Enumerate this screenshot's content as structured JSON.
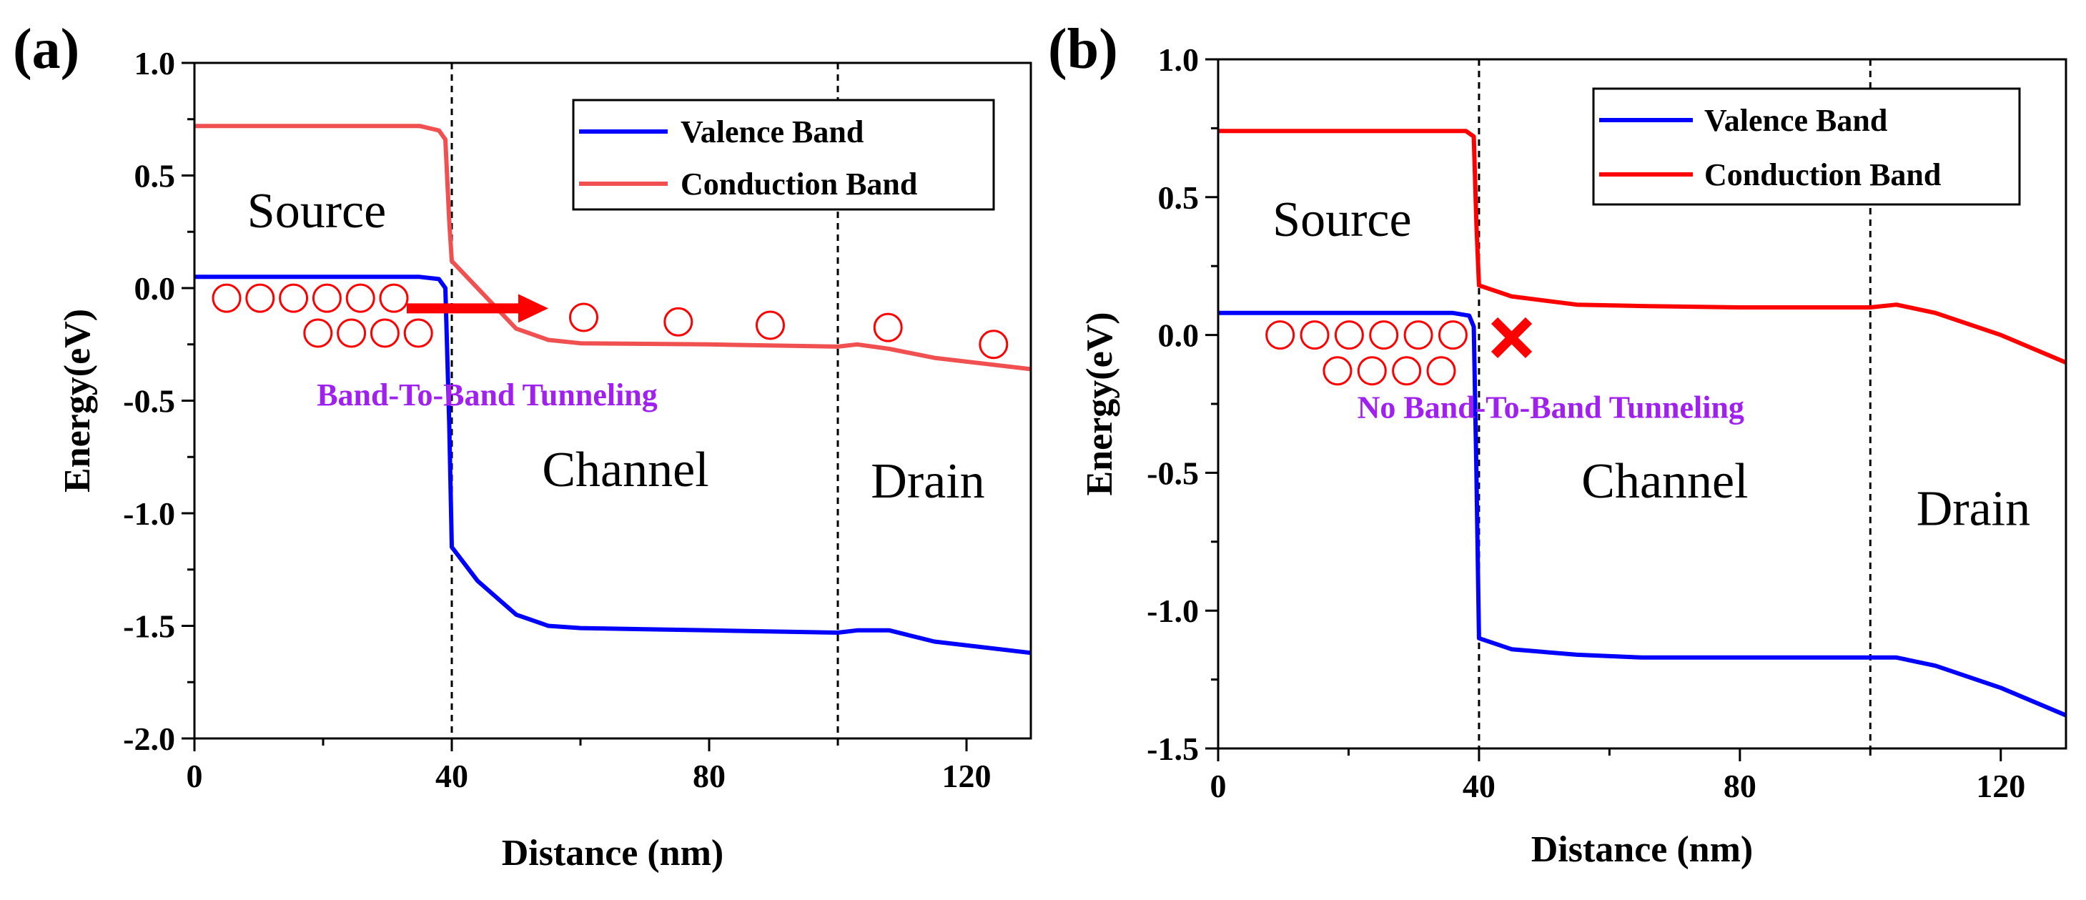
{
  "chart_data": [
    {
      "type": "line",
      "panel_label": "(a)",
      "xlabel": "Distance (nm)",
      "ylabel": "Energy(eV)",
      "xlim": [
        0,
        130
      ],
      "ylim": [
        -2.0,
        1.0
      ],
      "xticks": [
        0,
        40,
        80,
        120
      ],
      "xtick_labels": [
        "0",
        "40",
        "80",
        "120"
      ],
      "yticks": [
        1.0,
        0.5,
        0.0,
        -0.5,
        -1.0,
        -1.5,
        -2.0
      ],
      "ytick_labels": [
        "1.0",
        "0.5",
        "0.0",
        "-0.5",
        "-1.0",
        "-1.5",
        "-2.0"
      ],
      "grid": false,
      "legend_position": "top-right",
      "series": [
        {
          "name": "Valence Band",
          "color": "#0000ff",
          "x": [
            0,
            35,
            38,
            39,
            39.6,
            40,
            44,
            50,
            55,
            60,
            80,
            100,
            103,
            108,
            115,
            130
          ],
          "y": [
            0.05,
            0.05,
            0.04,
            0.0,
            -0.6,
            -1.15,
            -1.3,
            -1.45,
            -1.5,
            -1.51,
            -1.52,
            -1.53,
            -1.52,
            -1.52,
            -1.57,
            -1.62
          ]
        },
        {
          "name": "Conduction Band",
          "color": "#f05050",
          "x": [
            0,
            35,
            38,
            39,
            39.6,
            40,
            44,
            50,
            55,
            60,
            80,
            100,
            103,
            108,
            115,
            130
          ],
          "y": [
            0.72,
            0.72,
            0.7,
            0.66,
            0.3,
            0.12,
            0.0,
            -0.18,
            -0.23,
            -0.245,
            -0.25,
            -0.26,
            -0.25,
            -0.27,
            -0.31,
            -0.36
          ]
        }
      ],
      "vlines": [
        40,
        100
      ],
      "regions": [
        {
          "label": "Source",
          "x": 19,
          "y": 0.27
        },
        {
          "label": "Channel",
          "x": 67,
          "y": -0.88
        },
        {
          "label": "Drain",
          "x": 114,
          "y": -0.93
        }
      ],
      "annotation": {
        "text": "Band-To-Band Tunneling",
        "color": "#a020f0",
        "x": 45.5,
        "y": -0.52
      },
      "arrow": {
        "x0": 33,
        "y0": -0.09,
        "x1": 55,
        "y1": -0.09,
        "color": "#ff0000"
      },
      "circles": [
        {
          "x": 5,
          "y": -0.045
        },
        {
          "x": 10.2,
          "y": -0.045
        },
        {
          "x": 15.4,
          "y": -0.045
        },
        {
          "x": 20.6,
          "y": -0.045
        },
        {
          "x": 25.8,
          "y": -0.045
        },
        {
          "x": 31,
          "y": -0.045
        },
        {
          "x": 19.2,
          "y": -0.2
        },
        {
          "x": 24.4,
          "y": -0.2
        },
        {
          "x": 29.6,
          "y": -0.2
        },
        {
          "x": 34.8,
          "y": -0.2
        },
        {
          "x": 60.5,
          "y": -0.13
        },
        {
          "x": 75.2,
          "y": -0.15
        },
        {
          "x": 89.5,
          "y": -0.165
        },
        {
          "x": 107.8,
          "y": -0.175
        },
        {
          "x": 124.2,
          "y": -0.25
        }
      ]
    },
    {
      "type": "line",
      "panel_label": "(b)",
      "xlabel": "Distance (nm)",
      "ylabel": "Energy(eV)",
      "xlim": [
        0,
        130
      ],
      "ylim": [
        -1.5,
        1.0
      ],
      "xticks": [
        0,
        40,
        80,
        120
      ],
      "xtick_labels": [
        "0",
        "40",
        "80",
        "120"
      ],
      "yticks": [
        1.0,
        0.5,
        0.0,
        -0.5,
        -1.0,
        -1.5
      ],
      "ytick_labels": [
        "1.0",
        "0.5",
        "0.0",
        "-0.5",
        "-1.0",
        "-1.5"
      ],
      "grid": false,
      "legend_position": "top-right",
      "series": [
        {
          "name": "Valence Band",
          "color": "#0000ff",
          "x": [
            0,
            36,
            38.5,
            39.2,
            39.6,
            40,
            45,
            55,
            65,
            80,
            100,
            104,
            110,
            120,
            130
          ],
          "y": [
            0.08,
            0.08,
            0.07,
            0.03,
            -0.5,
            -1.1,
            -1.14,
            -1.16,
            -1.17,
            -1.17,
            -1.17,
            -1.17,
            -1.2,
            -1.28,
            -1.38
          ]
        },
        {
          "name": "Conduction Band",
          "color": "#ff0000",
          "x": [
            0,
            38,
            39.2,
            39.6,
            40,
            45,
            55,
            65,
            80,
            100,
            104,
            110,
            120,
            130
          ],
          "y": [
            0.74,
            0.74,
            0.72,
            0.4,
            0.18,
            0.14,
            0.11,
            0.105,
            0.1,
            0.1,
            0.11,
            0.08,
            0.0,
            -0.1
          ]
        }
      ],
      "vlines": [
        40,
        100
      ],
      "regions": [
        {
          "label": "Source",
          "x": 19,
          "y": 0.36
        },
        {
          "label": "Channel",
          "x": 68.5,
          "y": -0.59
        },
        {
          "label": "Drain",
          "x": 115.8,
          "y": -0.69
        }
      ],
      "annotation": {
        "text": "No Band-To-Band Tunneling",
        "color": "#a020f0",
        "x": 51,
        "y": -0.3
      },
      "cross": {
        "x": 45,
        "y": -0.01,
        "color": "#ff0000"
      },
      "circles": [
        {
          "x": 9.5,
          "y": 0.0
        },
        {
          "x": 14.8,
          "y": 0.0
        },
        {
          "x": 20.1,
          "y": 0.0
        },
        {
          "x": 25.4,
          "y": 0.0
        },
        {
          "x": 30.7,
          "y": 0.0
        },
        {
          "x": 36,
          "y": 0.0
        },
        {
          "x": 18.3,
          "y": -0.13
        },
        {
          "x": 23.6,
          "y": -0.13
        },
        {
          "x": 28.9,
          "y": -0.13
        },
        {
          "x": 34.2,
          "y": -0.13
        }
      ]
    }
  ]
}
